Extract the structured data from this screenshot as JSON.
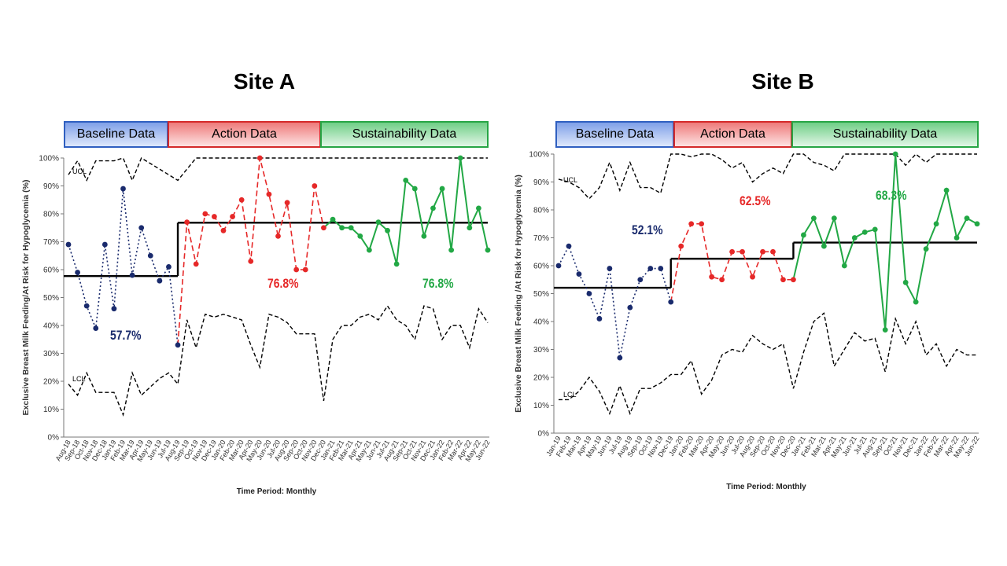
{
  "colors": {
    "baseline": "#1a2b6d",
    "action": "#e62828",
    "sustain": "#22a845",
    "mean": "#000000",
    "limit": "#000000"
  },
  "chart_data": [
    {
      "type": "line",
      "title": "Site A",
      "ylabel": "Exclusive Breast Milk Feeding/At Risk for Hypoglycemia (%)",
      "xlabel": "Time Period: Monthly",
      "ylim": [
        0,
        100
      ],
      "yticks": [
        "0%",
        "10%",
        "20%",
        "30%",
        "40%",
        "50%",
        "60%",
        "70%",
        "80%",
        "90%",
        "100%"
      ],
      "x": [
        "Aug-18",
        "Sep-18",
        "Oct-18",
        "Nov-18",
        "Dec-18",
        "Jan-19",
        "Feb-19",
        "Mar-19",
        "Apr-19",
        "May-19",
        "Jun-19",
        "Jul-19",
        "Aug-19",
        "Sep-19",
        "Oct-19",
        "Nov-19",
        "Dec-19",
        "Jan-20",
        "Feb-20",
        "Mar-20",
        "Apr-20",
        "May-20",
        "Jun-20",
        "Jul-20",
        "Aug-20",
        "Sep-20",
        "Oct-20",
        "Nov-20",
        "Dec-20",
        "Jan-21",
        "Feb-21",
        "Mar-21",
        "Apr-21",
        "May-21",
        "Jun-21",
        "Jul-21",
        "Aug-21",
        "Sep-21",
        "Oct-21",
        "Nov-21",
        "Dec-21",
        "Jan-22",
        "Feb-22",
        "Mar-22",
        "Apr-22",
        "May-22",
        "Jun-22"
      ],
      "phases": [
        {
          "label": "Baseline Data",
          "start": 0,
          "end": 12,
          "mean": 57.7,
          "mean_label": "57.7%"
        },
        {
          "label": "Action Data",
          "start": 12,
          "end": 28,
          "mean": 76.8,
          "mean_label": "76.8%"
        },
        {
          "label": "Sustainability Data",
          "start": 28,
          "end": 46,
          "mean": 76.8,
          "mean_label": "76.8%"
        }
      ],
      "values": [
        69,
        59,
        47,
        39,
        69,
        46,
        89,
        58,
        75,
        65,
        56,
        61,
        33,
        77,
        62,
        80,
        79,
        74,
        79,
        85,
        63,
        100,
        87,
        72,
        84,
        60,
        60,
        90,
        75,
        78,
        75,
        75,
        72,
        67,
        77,
        74,
        62,
        92,
        89,
        72,
        82,
        89,
        67,
        100,
        75,
        82,
        67
      ],
      "ucl": [
        94,
        99,
        92,
        99,
        99,
        99,
        100,
        92,
        100,
        98,
        96,
        94,
        92,
        96,
        100,
        100,
        100,
        100,
        100,
        100,
        100,
        100,
        100,
        100,
        100,
        100,
        100,
        100,
        100,
        100,
        100,
        100,
        100,
        100,
        100,
        100,
        100,
        100,
        100,
        100,
        100,
        100,
        100,
        100,
        100,
        100,
        100
      ],
      "lcl": [
        19,
        15,
        23,
        16,
        16,
        16,
        8,
        23,
        15,
        18,
        21,
        23,
        19,
        42,
        32,
        44,
        43,
        44,
        43,
        42,
        33,
        25,
        44,
        43,
        41,
        37,
        37,
        37,
        13,
        35,
        40,
        40,
        43,
        44,
        42,
        47,
        42,
        40,
        35,
        47,
        46,
        35,
        40,
        40,
        32,
        46,
        41
      ],
      "ucl_label": "UCL",
      "lcl_label": "LCL"
    },
    {
      "type": "line",
      "title": "Site B",
      "ylabel": "Exclusive Breast Milk Feeding /At Risk for Hypoglycemia (%)",
      "xlabel": "Time Period: Monthly",
      "ylim": [
        0,
        100
      ],
      "yticks": [
        "0%",
        "10%",
        "20%",
        "30%",
        "40%",
        "50%",
        "60%",
        "70%",
        "80%",
        "90%",
        "100%"
      ],
      "x": [
        "Jan-19",
        "Feb-19",
        "Mar-19",
        "Apr-19",
        "May-19",
        "Jun-19",
        "Jul-19",
        "Aug-19",
        "Sep-19",
        "Oct-19",
        "Nov-19",
        "Dec-19",
        "Jan-20",
        "Feb-20",
        "Mar-20",
        "Apr-20",
        "May-20",
        "Jun-20",
        "Jul-20",
        "Aug-20",
        "Sep-20",
        "Oct-20",
        "Nov-20",
        "Dec-20",
        "Jan-21",
        "Feb-21",
        "Mar-21",
        "Apr-21",
        "May-21",
        "Jun-21",
        "Jul-21",
        "Aug-21",
        "Sep-21",
        "Oct-21",
        "Nov-21",
        "Dec-21",
        "Jan-22",
        "Feb-22",
        "Mar-22",
        "Apr-22",
        "May-22",
        "Jun-22"
      ],
      "phases": [
        {
          "label": "Baseline Data",
          "start": 0,
          "end": 11,
          "mean": 52.1,
          "mean_label": "52.1%"
        },
        {
          "label": "Action Data",
          "start": 11,
          "end": 23,
          "mean": 62.5,
          "mean_label": "62.5%"
        },
        {
          "label": "Sustainability Data",
          "start": 23,
          "end": 41,
          "mean": 68.3,
          "mean_label": "68.3%"
        }
      ],
      "values": [
        60,
        67,
        57,
        50,
        41,
        59,
        27,
        45,
        55,
        59,
        59,
        47,
        67,
        75,
        75,
        56,
        55,
        65,
        65,
        56,
        65,
        65,
        55,
        55,
        71,
        77,
        67,
        77,
        60,
        70,
        72,
        73,
        37,
        100,
        54,
        47,
        66,
        75,
        87,
        70,
        77,
        75
      ],
      "ucl": [
        91,
        90,
        88,
        84,
        88,
        97,
        87,
        97,
        88,
        88,
        86,
        100,
        100,
        99,
        100,
        100,
        98,
        95,
        97,
        90,
        93,
        95,
        93,
        100,
        100,
        97,
        96,
        94,
        100,
        100,
        100,
        100,
        100,
        100,
        96,
        100,
        97,
        100,
        100,
        100,
        100,
        100
      ],
      "lcl": [
        12,
        12,
        15,
        20,
        15,
        7,
        17,
        7,
        16,
        16,
        18,
        21,
        21,
        26,
        14,
        19,
        28,
        30,
        29,
        35,
        32,
        30,
        32,
        16,
        29,
        40,
        43,
        24,
        30,
        36,
        33,
        34,
        22,
        41,
        32,
        40,
        28,
        32,
        24,
        30,
        28,
        28
      ],
      "ucl_label": "UCL",
      "lcl_label": "LCL"
    }
  ]
}
